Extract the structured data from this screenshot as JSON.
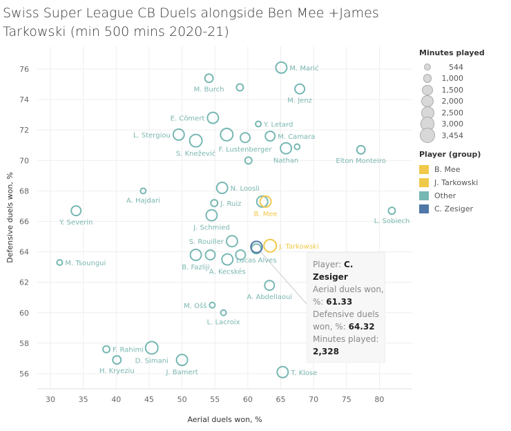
{
  "title": "Swiss Super League CB Duels alongside Ben Mee +James Tarkowski (min 500 mins 2020-21)",
  "chart_data": {
    "type": "scatter",
    "title": "Swiss Super League CB Duels alongside Ben Mee +James Tarkowski (min 500 mins 2020-21)",
    "xlabel": "Aerial duels won, %",
    "ylabel": "Defensive duels won, %",
    "xlim": [
      28,
      85
    ],
    "ylim": [
      55,
      77.5
    ],
    "xticks": [
      30,
      35,
      40,
      45,
      50,
      55,
      60,
      65,
      70,
      75,
      80
    ],
    "yticks": [
      56,
      58,
      60,
      62,
      64,
      66,
      68,
      70,
      72,
      74,
      76
    ],
    "grid": true,
    "legend_position": "right",
    "colors": {
      "B. Mee": "#f1c94a",
      "J. Tarkowski": "#f1c94a",
      "Other": "#76b7b2",
      "C. Zesiger": "#4e79a7"
    },
    "points": [
      {
        "name": "M. Marić",
        "x": 65.1,
        "y": 76.1,
        "minutes": 2200,
        "group": "Other",
        "label": "right"
      },
      {
        "name": "M. Burch",
        "x": 54.1,
        "y": 75.4,
        "minutes": 1240,
        "group": "Other",
        "label": "below"
      },
      {
        "name": "",
        "x": 58.8,
        "y": 74.8,
        "minutes": 860,
        "group": "Other",
        "label": ""
      },
      {
        "name": "M. Jenz",
        "x": 67.9,
        "y": 74.7,
        "minutes": 1690,
        "group": "Other",
        "label": "below"
      },
      {
        "name": "E. Cömert",
        "x": 54.7,
        "y": 72.8,
        "minutes": 2200,
        "group": "Other",
        "label": "left"
      },
      {
        "name": "Y. Letard",
        "x": 61.6,
        "y": 72.4,
        "minutes": 544,
        "group": "Other",
        "label": "right"
      },
      {
        "name": "L. Stergiou",
        "x": 49.5,
        "y": 71.7,
        "minutes": 2200,
        "group": "Other",
        "label": "left"
      },
      {
        "name": "",
        "x": 56.8,
        "y": 71.7,
        "minutes": 2800,
        "group": "Other",
        "label": ""
      },
      {
        "name": "S. Knežević",
        "x": 52.1,
        "y": 71.3,
        "minutes": 2800,
        "group": "Other",
        "label": "below"
      },
      {
        "name": "F. Lustenberger",
        "x": 59.6,
        "y": 71.5,
        "minutes": 1690,
        "group": "Other",
        "label": "below"
      },
      {
        "name": "M. Camara",
        "x": 63.4,
        "y": 71.6,
        "minutes": 1690,
        "group": "Other",
        "label": "right"
      },
      {
        "name": "Nathan",
        "x": 65.8,
        "y": 70.8,
        "minutes": 2200,
        "group": "Other",
        "label": "below"
      },
      {
        "name": "",
        "x": 67.5,
        "y": 70.9,
        "minutes": 544,
        "group": "Other",
        "label": ""
      },
      {
        "name": "Elton Monteiro",
        "x": 77.2,
        "y": 70.7,
        "minutes": 1240,
        "group": "Other",
        "label": "below"
      },
      {
        "name": "",
        "x": 60.1,
        "y": 70.0,
        "minutes": 860,
        "group": "Other",
        "label": ""
      },
      {
        "name": "N. Loosli",
        "x": 56.1,
        "y": 68.2,
        "minutes": 2200,
        "group": "Other",
        "label": "right"
      },
      {
        "name": "A. Hajdari",
        "x": 44.1,
        "y": 68.0,
        "minutes": 544,
        "group": "Other",
        "label": "below"
      },
      {
        "name": "J. Ruiz",
        "x": 54.9,
        "y": 67.2,
        "minutes": 860,
        "group": "Other",
        "label": "right"
      },
      {
        "name": "",
        "x": 62.2,
        "y": 67.3,
        "minutes": 2200,
        "group": "Other",
        "label": ""
      },
      {
        "name": "B. Mee",
        "x": 62.7,
        "y": 67.3,
        "minutes": 2200,
        "group": "B. Mee",
        "label": "below"
      },
      {
        "name": "Y. Severin",
        "x": 33.9,
        "y": 66.7,
        "minutes": 1690,
        "group": "Other",
        "label": "below"
      },
      {
        "name": "L. Sobiech",
        "x": 81.9,
        "y": 66.7,
        "minutes": 860,
        "group": "Other",
        "label": "below"
      },
      {
        "name": "J. Schmied",
        "x": 54.5,
        "y": 66.4,
        "minutes": 2200,
        "group": "Other",
        "label": "below"
      },
      {
        "name": "S. Rouiller",
        "x": 57.6,
        "y": 64.7,
        "minutes": 2200,
        "group": "Other",
        "label": "left"
      },
      {
        "name": "J. Tarkowski",
        "x": 63.4,
        "y": 64.4,
        "minutes": 2800,
        "group": "J. Tarkowski",
        "label": "right"
      },
      {
        "name": "Lucas Alves",
        "x": 61.3,
        "y": 64.2,
        "minutes": 1690,
        "group": "Other",
        "label": "below"
      },
      {
        "name": "C. Zesiger",
        "x": 61.33,
        "y": 64.32,
        "minutes": 2328,
        "group": "C. Zesiger",
        "label": ""
      },
      {
        "name": "B. Fazliji",
        "x": 52.1,
        "y": 63.8,
        "minutes": 2200,
        "group": "Other",
        "label": "below"
      },
      {
        "name": "",
        "x": 54.3,
        "y": 63.8,
        "minutes": 1690,
        "group": "Other",
        "label": ""
      },
      {
        "name": "A. Kecskés",
        "x": 56.9,
        "y": 63.5,
        "minutes": 2200,
        "group": "Other",
        "label": "below"
      },
      {
        "name": "",
        "x": 58.9,
        "y": 63.8,
        "minutes": 1690,
        "group": "Other",
        "label": ""
      },
      {
        "name": "M. Tsoungui",
        "x": 31.4,
        "y": 63.3,
        "minutes": 550,
        "group": "Other",
        "label": "right"
      },
      {
        "name": "A. Abdellaoui",
        "x": 63.3,
        "y": 61.8,
        "minutes": 1690,
        "group": "Other",
        "label": "below"
      },
      {
        "name": "M. Ošš",
        "x": 54.6,
        "y": 60.5,
        "minutes": 550,
        "group": "Other",
        "label": "left"
      },
      {
        "name": "L. Lacroix",
        "x": 56.3,
        "y": 60.0,
        "minutes": 544,
        "group": "Other",
        "label": "below"
      },
      {
        "name": "F. Rahimi",
        "x": 38.5,
        "y": 57.6,
        "minutes": 860,
        "group": "Other",
        "label": "right"
      },
      {
        "name": "D. Simani",
        "x": 45.4,
        "y": 57.7,
        "minutes": 2800,
        "group": "Other",
        "label": "below"
      },
      {
        "name": "H. Kryeziu",
        "x": 40.1,
        "y": 56.9,
        "minutes": 1240,
        "group": "Other",
        "label": "below"
      },
      {
        "name": "J. Bamert",
        "x": 50.0,
        "y": 56.9,
        "minutes": 2200,
        "group": "Other",
        "label": "below"
      },
      {
        "name": "T. Klose",
        "x": 65.3,
        "y": 56.1,
        "minutes": 2200,
        "group": "Other",
        "label": "right"
      }
    ]
  },
  "legend": {
    "size_title": "Minutes played",
    "sizes": [
      "544",
      "1,000",
      "1,500",
      "2,000",
      "2,500",
      "3,000",
      "3,454"
    ],
    "size_values": [
      544,
      1000,
      1500,
      2000,
      2500,
      3000,
      3454
    ],
    "color_title": "Player (group)",
    "groups": [
      {
        "label": "B. Mee",
        "color": "#f1c94a"
      },
      {
        "label": "J. Tarkowski",
        "color": "#f1c94a"
      },
      {
        "label": "Other",
        "color": "#76b7b2"
      },
      {
        "label": "C. Zesiger",
        "color": "#4e79a7"
      }
    ]
  },
  "tooltip": {
    "player_label": "Player:",
    "player_value": "C. Zesiger",
    "aerial_label": "Aerial duels won, %:",
    "aerial_value": "61.33",
    "defensive_label": "Defensive duels won, %:",
    "defensive_value": "64.32",
    "minutes_label": "Minutes played:",
    "minutes_value": "2,328"
  }
}
